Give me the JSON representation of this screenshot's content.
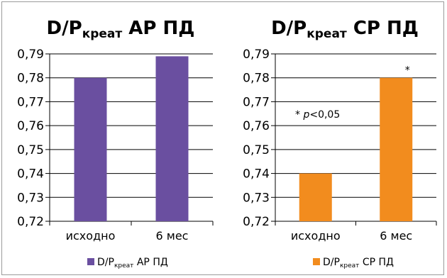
{
  "chart_data": [
    {
      "type": "bar",
      "title": {
        "main": "D/P",
        "sub": "креат",
        "rest": " АР ПД"
      },
      "categories": [
        "исходно",
        "6 мес"
      ],
      "values": [
        0.78,
        0.789
      ],
      "ylim": [
        0.72,
        0.79
      ],
      "yticks": [
        "0,79",
        "0,78",
        "0,77",
        "0,76",
        "0,75",
        "0,74",
        "0,73",
        "0,72"
      ],
      "color": "#6a4fa0",
      "grid": true,
      "legend": {
        "main": "D/P",
        "sub": "креат",
        "rest": " АР ПД"
      },
      "legend_position": "bottom"
    },
    {
      "type": "bar",
      "title": {
        "main": "D/P",
        "sub": "креат",
        "rest": " СР ПД"
      },
      "categories": [
        "исходно",
        "6 мес"
      ],
      "values": [
        0.74,
        0.78
      ],
      "ylim": [
        0.72,
        0.79
      ],
      "yticks": [
        "0,79",
        "0,78",
        "0,77",
        "0,76",
        "0,75",
        "0,74",
        "0,73",
        "0,72"
      ],
      "color": "#f28c1e",
      "grid": true,
      "legend": {
        "main": "D/P",
        "sub": "креат",
        "rest": " СР ПД"
      },
      "legend_position": "bottom",
      "annotations": {
        "note_star": "* ",
        "note_p": "p",
        "note_rest": "<0,05",
        "bar_star": "*"
      }
    }
  ]
}
